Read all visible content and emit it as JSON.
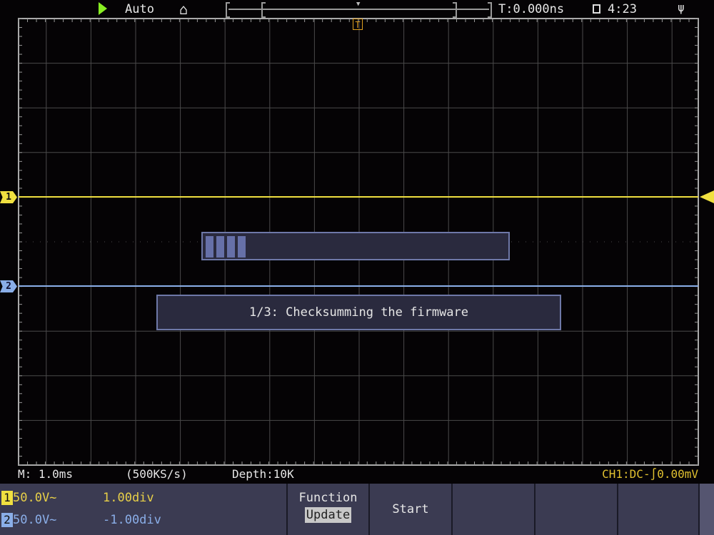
{
  "header": {
    "run_state_icon": "play-triangle-icon",
    "trigger_mode": "Auto",
    "home_icon": "home-icon",
    "trigger_time": "T:0.000ns",
    "lock_icon": "lock-icon",
    "clock": "4:23",
    "usb_icon": "usb-icon"
  },
  "markers": {
    "trigger": "T",
    "ch1": "1",
    "ch2": "2"
  },
  "progress": {
    "segments_filled": 4,
    "fraction": 0.14
  },
  "message": "1/3: Checksumming the firmware",
  "status": {
    "timebase": "M: 1.0ms",
    "sample_rate": "(500KS/s)",
    "depth": "Depth:10K",
    "trigger_info": "CH1:DC-∫0.00mV"
  },
  "channels": [
    {
      "id": "1",
      "scale": "50.0V~",
      "offset": "1.00div",
      "color": "#f0e040"
    },
    {
      "id": "2",
      "scale": "50.0V~",
      "offset": "-1.00div",
      "color": "#8aaee8"
    }
  ],
  "menu": {
    "function_label": "Function",
    "function_value": "Update",
    "start_label": "Start"
  },
  "colors": {
    "ch1": "#f0e040",
    "ch2": "#8aaee8",
    "grid": "#4a4a4a",
    "run": "#88ee22"
  }
}
